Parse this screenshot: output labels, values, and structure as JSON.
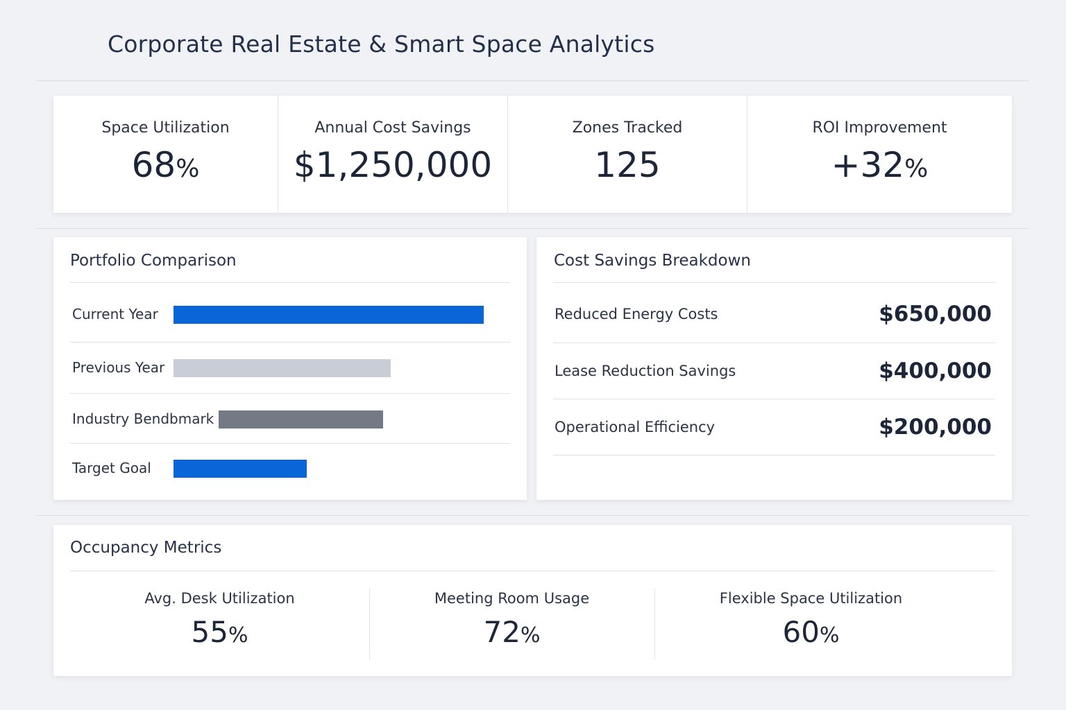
{
  "header": {
    "title": "Corporate Real Estate & Smart Space Analytics"
  },
  "kpis": [
    {
      "label": "Space Utilization",
      "value": "68",
      "unit": "%"
    },
    {
      "label": "Annual Cost Savings",
      "value": "$1,250,000",
      "unit": ""
    },
    {
      "label": "Zones Tracked",
      "value": "125",
      "unit": ""
    },
    {
      "label": "ROI Improvement",
      "value": "+32",
      "unit": "%"
    }
  ],
  "portfolio": {
    "title": "Portfolio Comparison",
    "rows": [
      {
        "label": "Current Year",
        "value": 1.0,
        "color": "#0a66d8"
      },
      {
        "label": "Previous Year",
        "value": 0.7,
        "color": "#c9cdd6"
      },
      {
        "label": "Industry Bendbmark",
        "value": 0.53,
        "color": "#737985"
      },
      {
        "label": "Target Goal",
        "value": 0.43,
        "color": "#0a66d8"
      }
    ]
  },
  "savings": {
    "title": "Cost Savings Breakdown",
    "rows": [
      {
        "label": "Reduced Energy Costs",
        "value": "$650,000"
      },
      {
        "label": "Lease Reduction Savings",
        "value": "$400,000"
      },
      {
        "label": "Operational Efficiency",
        "value": "$200,000"
      }
    ]
  },
  "occupancy": {
    "title": "Occupancy Metrics",
    "metrics": [
      {
        "label": "Avg. Desk Utilization",
        "value": "55",
        "unit": "%"
      },
      {
        "label": "Meeting Room Usage",
        "value": "72",
        "unit": "%"
      },
      {
        "label": "Flexible Space Utilization",
        "value": "60",
        "unit": "%"
      }
    ]
  }
}
